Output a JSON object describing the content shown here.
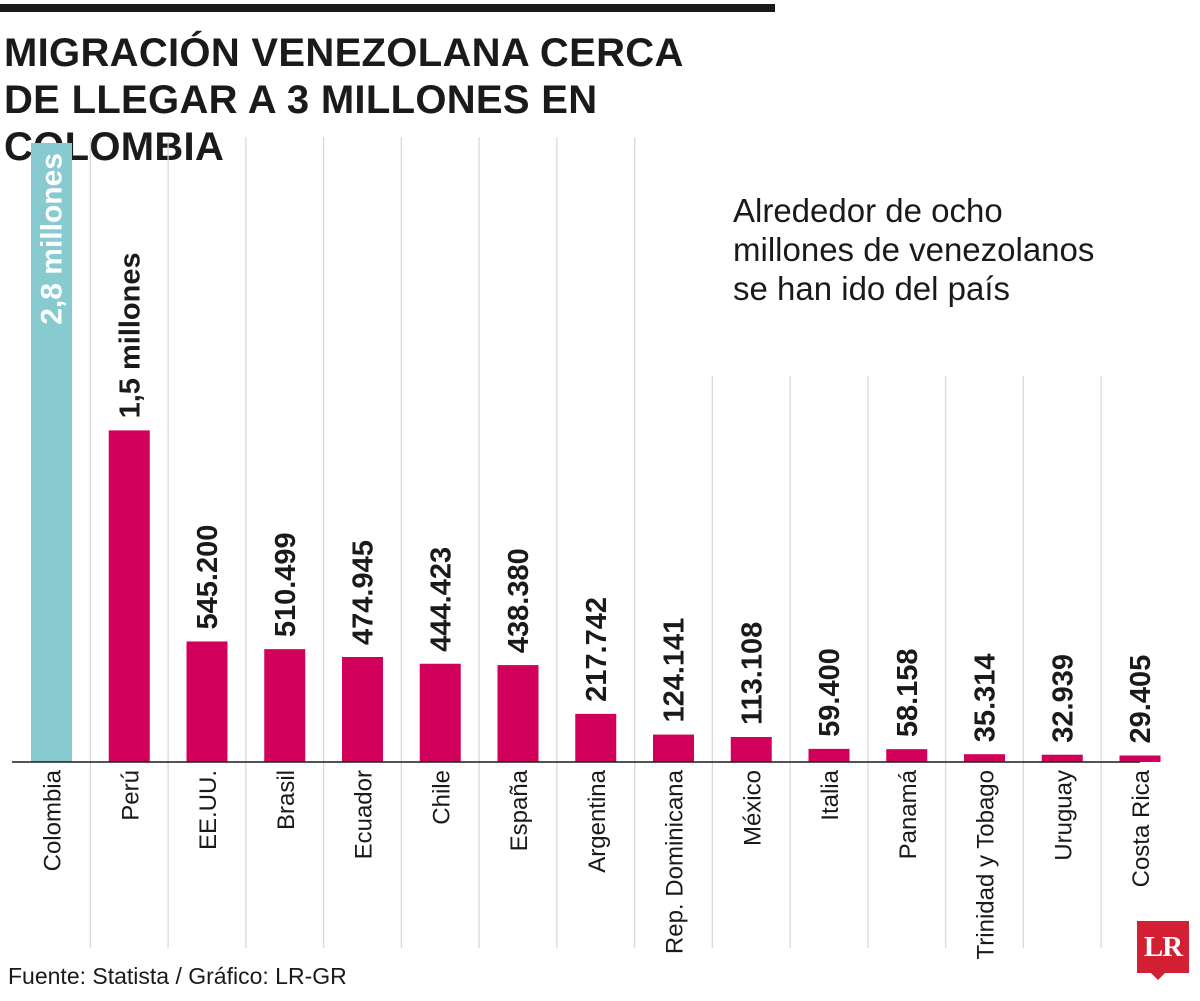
{
  "header": {
    "title": "MIGRACIÓN VENEZOLANA CERCA\nDE LLEGAR A 3 MILLONES EN COLOMBIA"
  },
  "annotation": "Alrededor de ocho\nmillones de venezolanos\nse han ido del país",
  "footer": {
    "source": "Fuente: Statista / Gráfico: LR-GR"
  },
  "logo": {
    "text": "LR",
    "color": "#d21f33"
  },
  "colors": {
    "highlight": "#87cbd0",
    "bars": "#d0005b",
    "grid": "#d9d9d9",
    "text": "#1a1a1a"
  },
  "chart_data": {
    "type": "bar",
    "title": "MIGRACIÓN VENEZOLANA CERCA DE LLEGAR A 3 MILLONES EN COLOMBIA",
    "xlabel": "",
    "ylabel": "",
    "categories": [
      "Colombia",
      "Perú",
      "EE.UU.",
      "Brasil",
      "Ecuador",
      "Chile",
      "España",
      "Argentina",
      "Rep. Dominicana",
      "México",
      "Italia",
      "Panamá",
      "Trinidad y Tobago",
      "Uruguay",
      "Costa Rica"
    ],
    "values": [
      2800000,
      1500000,
      545200,
      510499,
      474945,
      444423,
      438380,
      217742,
      124141,
      113108,
      59400,
      58158,
      35314,
      32939,
      29405
    ],
    "value_labels": [
      "2,8 millones",
      "1,5 millones",
      "545.200",
      "510.499",
      "474.945",
      "444.423",
      "438.380",
      "217.742",
      "124.141",
      "113.108",
      "59.400",
      "58.158",
      "35.314",
      "32.939",
      "29.405"
    ],
    "highlight_index": 0,
    "ylim": [
      0,
      2800000
    ],
    "grid": true,
    "legend": "none"
  }
}
